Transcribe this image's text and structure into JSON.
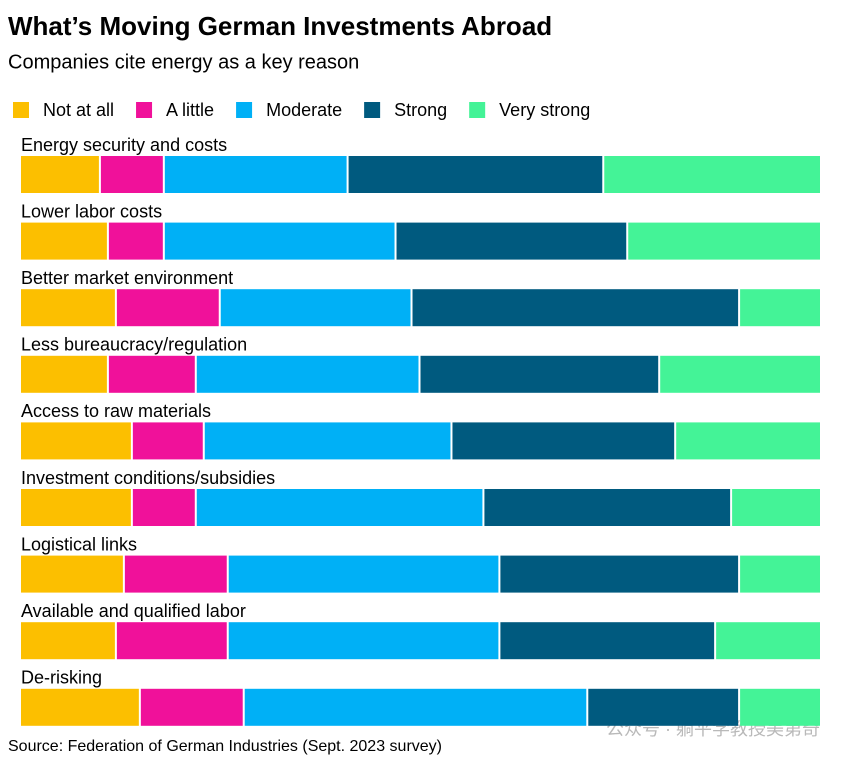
{
  "chart_data": {
    "type": "stacked-bar-horizontal",
    "title": "What’s Moving German Investments Abroad",
    "subtitle": "Companies cite energy as a key reason",
    "source": "Source: Federation of German Industries (Sept. 2023 survey)",
    "watermark": "公众号 · 躺平学教授美第奇",
    "categories": [
      "Energy security and costs",
      "Lower labor costs",
      "Better market environment",
      "Less bureaucracy/regulation",
      "Access to raw materials",
      "Investment conditions/subsidies",
      "Logistical links",
      "Available and qualified labor",
      "De-risking"
    ],
    "xlim": [
      0,
      100
    ],
    "series": [
      {
        "name": "Not at all",
        "color": "#fcbf00",
        "values": [
          10,
          11,
          12,
          11,
          14,
          14,
          13,
          12,
          15
        ]
      },
      {
        "name": "A little",
        "color": "#f0119a",
        "values": [
          8,
          7,
          13,
          11,
          9,
          8,
          13,
          14,
          13
        ]
      },
      {
        "name": "Moderate",
        "color": "#00b0f6",
        "values": [
          23,
          29,
          24,
          28,
          31,
          36,
          34,
          34,
          43
        ]
      },
      {
        "name": "Strong",
        "color": "#005a7f",
        "values": [
          32,
          29,
          41,
          30,
          28,
          31,
          30,
          27,
          19
        ]
      },
      {
        "name": "Very strong",
        "color": "#44f397",
        "values": [
          27,
          24,
          10,
          20,
          18,
          11,
          10,
          13,
          10
        ]
      }
    ]
  }
}
